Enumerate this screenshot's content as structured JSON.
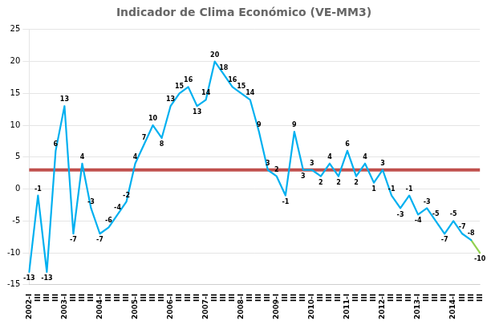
{
  "chart_data": {
    "type": "line",
    "title": "Indicador de Clima Económico (VE-MM3)",
    "categories": [
      "2002-I",
      "III",
      "III",
      "III",
      "2003-I",
      "III",
      "III",
      "III",
      "2004-I",
      "III",
      "III",
      "III",
      "2005-I",
      "III",
      "III",
      "III",
      "2006-I",
      "III",
      "III",
      "III",
      "2007-I",
      "III",
      "III",
      "III",
      "2008-I",
      "III",
      "III",
      "III",
      "2009-I",
      "III",
      "III",
      "III",
      "2010-I",
      "III",
      "III",
      "III",
      "2011-I",
      "III",
      "III",
      "III",
      "2012-I",
      "III",
      "III",
      "III",
      "2013-I",
      "III",
      "III",
      "III",
      "2014-I",
      "III",
      "III",
      "III"
    ],
    "series": [
      {
        "color": "#00B0F0",
        "values": [
          -13,
          -1,
          -13,
          6,
          13,
          -7,
          4,
          -3,
          -7,
          -6,
          -4,
          -2,
          4,
          7,
          10,
          8,
          13,
          15,
          16,
          13,
          14,
          20,
          18,
          16,
          15,
          14,
          9,
          3,
          2,
          -1,
          9,
          3,
          3,
          2,
          4,
          2,
          6,
          2,
          4,
          1,
          3,
          -1,
          -3,
          -1,
          -4,
          -3,
          -5,
          -7,
          -5,
          -7,
          -8,
          null
        ]
      },
      {
        "color": "#92D050",
        "values": [
          null,
          null,
          null,
          null,
          null,
          null,
          null,
          null,
          null,
          null,
          null,
          null,
          null,
          null,
          null,
          null,
          null,
          null,
          null,
          null,
          null,
          null,
          null,
          null,
          null,
          null,
          null,
          null,
          null,
          null,
          null,
          null,
          null,
          null,
          null,
          null,
          null,
          null,
          null,
          null,
          null,
          null,
          null,
          null,
          null,
          null,
          null,
          null,
          null,
          null,
          -8,
          -10
        ]
      }
    ],
    "reference_lines": [
      {
        "value": 3,
        "color": "#C0504D"
      }
    ],
    "ylim": [
      -15,
      25
    ],
    "yticks": [
      -15,
      -10,
      -5,
      0,
      5,
      10,
      15,
      20,
      25
    ],
    "grid": "y",
    "data_labels": true
  }
}
